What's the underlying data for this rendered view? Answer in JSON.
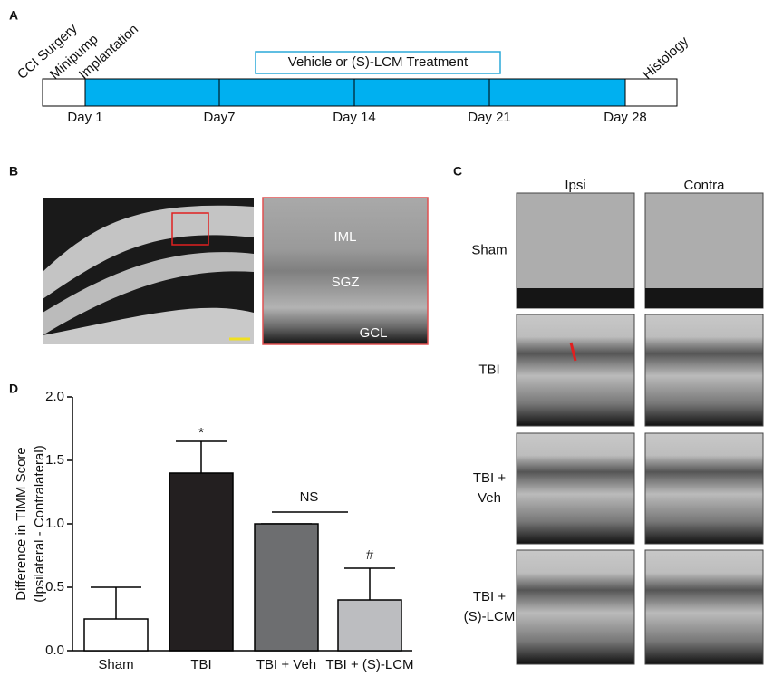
{
  "panel_a": {
    "letter": "A",
    "events": [
      "CCI Surgery",
      "Minipump",
      "Implantation",
      "Histology"
    ],
    "treatment": "Vehicle or (S)-LCM Treatment",
    "days": [
      "Day 1",
      "Day7",
      "Day 14",
      "Day 21",
      "Day 28"
    ]
  },
  "panel_b": {
    "letter": "B",
    "labels": [
      "IML",
      "SGZ",
      "GCL"
    ]
  },
  "panel_c": {
    "letter": "C",
    "columns": [
      "Ipsi",
      "Contra"
    ],
    "rows": [
      [
        "Sham"
      ],
      [
        "TBI"
      ],
      [
        "TBI +",
        "Veh"
      ],
      [
        "TBI +",
        "(S)-LCM"
      ]
    ]
  },
  "chart_data": {
    "type": "bar",
    "letter": "D",
    "ylabel": [
      "Difference in TIMM Score",
      "(Ipsilateral - Contralateral)"
    ],
    "categories": [
      "Sham",
      "TBI",
      "TBI + Veh",
      "TBI + (S)-LCM"
    ],
    "values": [
      0.25,
      1.4,
      1.0,
      0.4
    ],
    "errors": [
      0.25,
      0.25,
      0,
      0.25
    ],
    "colors": [
      "#ffffff",
      "#231f20",
      "#6d6e70",
      "#bcbdc0"
    ],
    "ylim": [
      0,
      2
    ],
    "yticks": [
      {
        "value": 0,
        "label": "0.0"
      },
      0.5,
      {
        "value": 1,
        "label": "1.0"
      },
      1.5,
      {
        "value": 2,
        "label": "2.0"
      }
    ],
    "annotations": [
      "*",
      "NS",
      "#"
    ]
  }
}
